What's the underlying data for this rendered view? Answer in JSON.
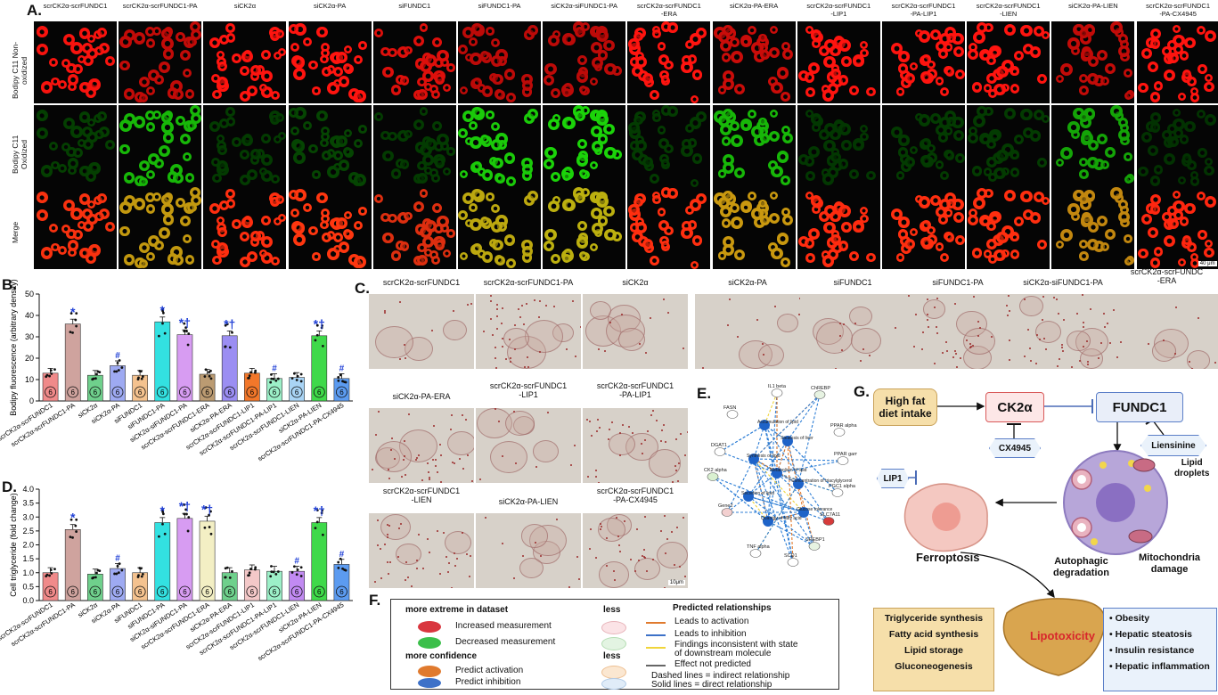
{
  "panel_labels": {
    "a": "A.",
    "b": "B.",
    "c": "C.",
    "d": "D.",
    "e": "E.",
    "f": "F.",
    "g": "G."
  },
  "panelA": {
    "columns": [
      "scrCK2α-scrFUNDC1",
      "scrCK2α-scrFUNDC1-PA",
      "siCK2α",
      "siCK2α-PA",
      "siFUNDC1",
      "siFUNDC1-PA",
      "siCK2α-siFUNDC1-PA",
      "scrCK2α-scrFUNDC1\n-ERA",
      "siCK2α-PA-ERA",
      "scrCK2α-scrFUNDC1\n-LIP1",
      "scrCK2α-scrFUNDC1\n-PA-LIP1",
      "scrCK2α-scrFUNDC1\n-LIEN",
      "siCK2α-PA-LIEN",
      "scrCK2α-scrFUNDC1\n-PA-CX4945"
    ],
    "rows": [
      "Bodipy C11\nNon-oxidized",
      "Bodipy C11\nOxidized",
      "Merge"
    ],
    "scale_bar": "40 μm",
    "red_intensity": [
      0.95,
      0.55,
      1,
      1,
      0.75,
      0.5,
      0.5,
      1,
      0.6,
      1,
      1,
      1,
      0.55,
      1
    ],
    "green_intensity": [
      0.12,
      0.75,
      0.1,
      0.15,
      0.1,
      0.85,
      0.9,
      0.1,
      0.75,
      0.08,
      0.1,
      0.1,
      0.65,
      0.05
    ]
  },
  "chart_data": [
    {
      "type": "bar",
      "panel": "B",
      "ylabel": "Bodipy fluorescence (arbitrary density)",
      "ylim": [
        0,
        50
      ],
      "yticks": [
        0,
        10,
        20,
        30,
        40,
        50
      ],
      "categories": [
        "scrCK2α-scrFUNDC1",
        "scrCK2α-scrFUNDC1-PA",
        "siCK2α",
        "siCK2α-PA",
        "siFUNDC1",
        "siFUNDC1-PA",
        "siCK2α-siFUNDC1-PA",
        "scrCK2α-scrFUNDC1-ERA",
        "siCK2α-PA-ERA",
        "scrCK2α-scrFUNDC1-LIP1",
        "scrCK2α-scrFUNDC1-PA-LIP1",
        "scrCK2α-scrFUNDC1-LIEN",
        "siCK2α-PA-LIEN",
        "scrCK2α-scrFUNDC1-PA-CX4945"
      ],
      "values": [
        13,
        36,
        12,
        16.5,
        12,
        37,
        31,
        12.5,
        30.5,
        13,
        10.5,
        11,
        30.5,
        10.5
      ],
      "n_labels": [
        "6",
        "6",
        "6",
        "6",
        "6",
        "6",
        "6",
        "6",
        "6",
        "6",
        "6",
        "6",
        "6",
        "6"
      ],
      "annotations": [
        "",
        "*",
        "",
        "#",
        "",
        "*",
        "*†",
        "",
        "*†",
        "",
        "#",
        "",
        "*†",
        "#"
      ],
      "colors": [
        "#f08a8a",
        "#cfa39e",
        "#6fd08c",
        "#9eaaf2",
        "#f4c28f",
        "#33e1e1",
        "#d79cf2",
        "#bb9b72",
        "#9b8ef2",
        "#f2772a",
        "#9cf0c8",
        "#a9d4f5",
        "#3fd94a",
        "#5c9bf0"
      ]
    },
    {
      "type": "bar",
      "panel": "D",
      "ylabel": "Cell triglyceride (fold change)",
      "ylim": [
        0,
        4.0
      ],
      "yticks": [
        "0.0",
        "0.5",
        "1.0",
        "1.5",
        "2.0",
        "2.5",
        "3.0",
        "3.5",
        "4.0"
      ],
      "categories": [
        "scrCK2α-scrFUNDC1",
        "scrCK2α-scrFUNDC1-PA",
        "siCK2α",
        "siCK2α-PA",
        "siFUNDC1",
        "siFUNDC1-PA",
        "siCK2α-siFUNDC1-PA",
        "scrCK2α-scrFUNDC1-ERA",
        "siCK2α-PA-ERA",
        "scrCK2α-scrFUNDC1-LIP1",
        "scrCK2α-scrFUNDC1-PA-LIP1",
        "scrCK2α-scrFUNDC1-LIEN",
        "siCK2α-PA-LIEN",
        "scrCK2α-scrFUNDC1-PA-CX4945"
      ],
      "values": [
        1.0,
        2.55,
        0.95,
        1.15,
        1.0,
        2.8,
        2.95,
        2.85,
        1.0,
        1.1,
        1.05,
        1.05,
        2.8,
        1.3
      ],
      "n_labels": [
        "6",
        "6",
        "6",
        "6",
        "6",
        "6",
        "6",
        "6",
        "6",
        "6",
        "6",
        "6",
        "6",
        "6"
      ],
      "annotations": [
        "",
        "*",
        "",
        "#",
        "",
        "*",
        "*†",
        "*†",
        "",
        "",
        "",
        "#",
        "*†",
        "#"
      ],
      "colors": [
        "#f08a8a",
        "#cfa39e",
        "#6fd08c",
        "#9eaaf2",
        "#f4c28f",
        "#33e1e1",
        "#d79cf2",
        "#f3efc4",
        "#6fd08c",
        "#f4c8c8",
        "#9cf0c8",
        "#c18af2",
        "#3fd94a",
        "#5c9bf0"
      ]
    }
  ],
  "panelC": {
    "tiles": [
      "scrCK2α-scrFUNDC1",
      "scrCK2α-scrFUNDC1-PA",
      "siCK2α",
      "siCK2α-PA",
      "siFUNDC1",
      "siFUNDC1-PA",
      "siCK2α-siFUNDC1-PA",
      "scrCK2α-scrFUNDC\n-ERA",
      "siCK2α-PA-ERA",
      "scrCK2α-scrFUNDC1\n-LIP1",
      "scrCK2α-scrFUNDC1\n-PA-LIP1",
      "scrCK2α-scrFUNDC1\n-LIEN",
      "siCK2α-PA-LIEN",
      "scrCK2α-scrFUNDC1\n-PA-CX4945"
    ],
    "scale_bar": "10μm"
  },
  "panelE": {
    "nodes": [
      "IL1 beta",
      "ChREBP",
      "FASN",
      "PPAR alpha",
      "DGAT1",
      "PPAR gamma",
      "CK2 alpha",
      "PGC1 alpha",
      "Gene2",
      "SLC7A11",
      "TNF alpha",
      "SCD1",
      "SREBP1",
      "Accumulation of lipid",
      "Steatosis of liver",
      "Synthesis of lipid",
      "Secretion of lipid",
      "Concentration of triacylglycerol",
      "Glucose tolerance",
      "Metabolism of lipid",
      "Quantity of fatty acid"
    ]
  },
  "panelF": {
    "title_left": "more extreme in dataset",
    "less1": "less",
    "increased": "Increased measurement",
    "decreased": "Decreased measurement",
    "title_conf": "more confidence",
    "less2": "less",
    "activation": "Predict activation",
    "inhibition": "Predict inhibition",
    "title_rel": "Predicted relationships",
    "leads_act": "Leads to activation",
    "leads_inh": "Leads to inhibition",
    "inconsistent": "Findings inconsistent with state\nof downstream molecule",
    "not_predicted": "Effect not predicted",
    "dashed": "Dashed lines = indirect relationship",
    "solid": "Solid lines = direct relationship"
  },
  "panelG": {
    "hfd": "High fat\ndiet intake",
    "ck2a": "CK2α",
    "fundc1": "FUNDC1",
    "cx4945": "CX4945",
    "liensinine": "Liensinine",
    "lip1": "LIP1",
    "lipid_droplets": "Lipid\ndroplets",
    "ferroptosis": "Ferroptosis",
    "autophagic": "Autophagic\ndegradation",
    "mito": "Mitochondria\ndamage",
    "lipotoxicity": "Lipotoxicity",
    "left_list": [
      "Triglyceride synthesis",
      "Fatty acid synthesis",
      "Lipid storage",
      "Gluconeogenesis"
    ],
    "right_list": [
      "Obesity",
      "Hepatic steatosis",
      "Insulin resistance",
      "Hepatic inflammation"
    ]
  }
}
